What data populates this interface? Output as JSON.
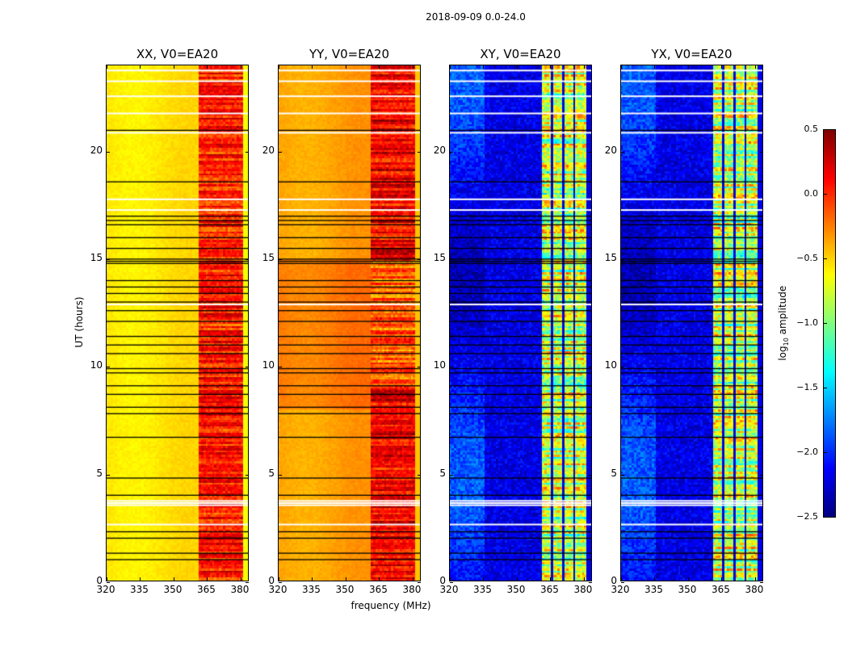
{
  "chart_data": {
    "type": "heatmap",
    "title": "2018-09-09 0.0-24.0",
    "xlabel": "frequency (MHz)",
    "ylabel": "UT (hours)",
    "xlim": [
      320,
      384
    ],
    "ylim": [
      0,
      24
    ],
    "xticks": [
      "320",
      "335",
      "350",
      "365",
      "380"
    ],
    "yticks": [
      "0",
      "5",
      "10",
      "15",
      "20"
    ],
    "panels": [
      {
        "title": "XX, V0=EA20",
        "baseline_log_amp": -0.55,
        "rfi_band_mhz": [
          362,
          382
        ],
        "rfi_log_amp": 0.05,
        "cross": false
      },
      {
        "title": "YY, V0=EA20",
        "baseline_log_amp": -0.35,
        "rfi_band_mhz": [
          362,
          382
        ],
        "rfi_log_amp": 0.15,
        "cross": false
      },
      {
        "title": "XY, V0=EA20",
        "baseline_log_amp": -2.2,
        "rfi_band_mhz": [
          362,
          382
        ],
        "rfi_log_amp": -0.8,
        "cross": true
      },
      {
        "title": "YX, V0=EA20",
        "baseline_log_amp": -2.2,
        "rfi_band_mhz": [
          362,
          382
        ],
        "rfi_log_amp": -0.8,
        "cross": true
      }
    ],
    "flagged_times_white": [
      2.65,
      3.55,
      3.65,
      3.75,
      12.9,
      17.3,
      17.8,
      20.9,
      21.8,
      22.6,
      23.3,
      23.8
    ],
    "flagged_times_black": [
      1.0,
      1.3,
      2.0,
      2.3,
      4.0,
      4.8,
      6.7,
      7.8,
      8.1,
      8.7,
      9.1,
      9.7,
      9.9,
      10.6,
      11.0,
      11.4,
      12.1,
      12.6,
      13.0,
      13.4,
      13.7,
      14.0,
      14.8,
      14.9,
      15.0,
      15.5,
      16.0,
      16.6,
      16.8,
      17.0,
      18.6,
      21.0
    ],
    "colorbar": {
      "label": "log10 amplitude",
      "label_main": "log",
      "label_sub": "10",
      "label_rest": " amplitude",
      "range": [
        -2.5,
        0.5
      ],
      "ticks": [
        "0.5",
        "0.0",
        "−0.5",
        "−1.0",
        "−1.5",
        "−2.0",
        "−2.5"
      ],
      "tick_values": [
        0.5,
        0.0,
        -0.5,
        -1.0,
        -1.5,
        -2.0,
        -2.5
      ],
      "colormap": "jet"
    }
  }
}
